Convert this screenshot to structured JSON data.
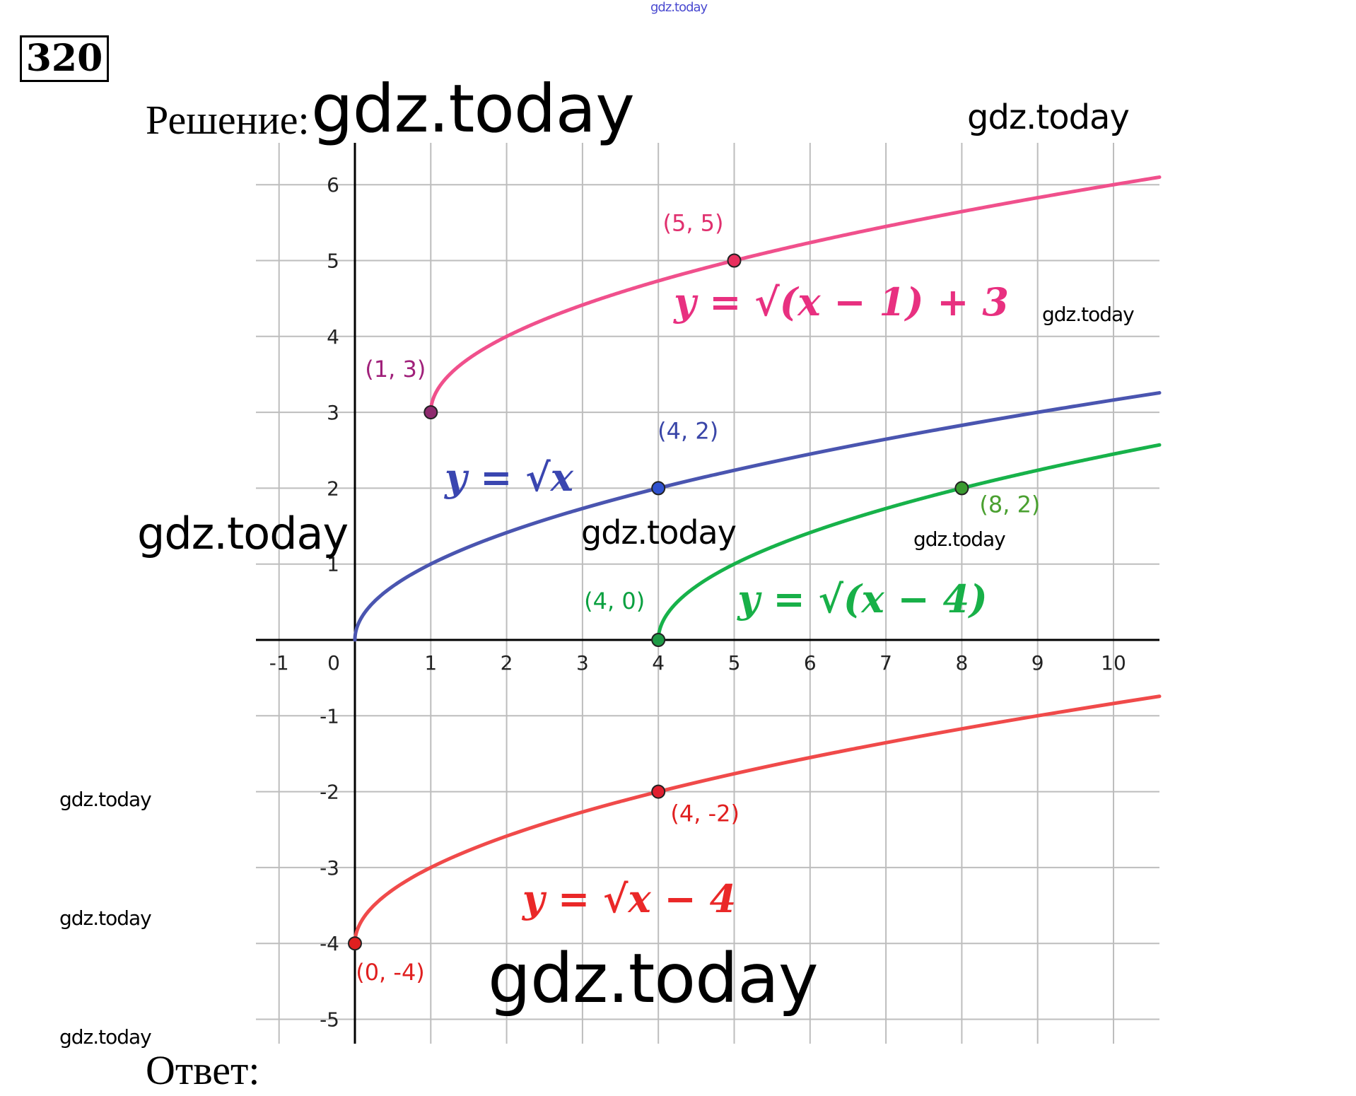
{
  "problem_number": "320",
  "solution_heading": "Решение:",
  "answer_heading": "Ответ:",
  "watermarks": [
    "gdz.today",
    "gdz.today",
    "gdz.today",
    "gdz.today",
    "gdz.today",
    "gdz.today",
    "gdz.today",
    "gdz.today",
    "gdz.today",
    "gdz.today",
    "gdz.today"
  ],
  "chart_data": {
    "type": "line",
    "title": "",
    "xlabel": "",
    "ylabel": "",
    "xlim": [
      -1,
      10.5
    ],
    "ylim": [
      -5.3,
      6.5
    ],
    "x_ticks": [
      "-1",
      "0",
      "1",
      "2",
      "3",
      "4",
      "5",
      "6",
      "7",
      "8",
      "9",
      "10"
    ],
    "y_ticks": [
      "-5",
      "-4",
      "-3",
      "-2",
      "-1",
      "1",
      "2",
      "3",
      "4",
      "5",
      "6"
    ],
    "grid": true,
    "series": [
      {
        "name": "y = √(x − 1) + 3",
        "color": "#f0508c",
        "function": "sqrt(x-1)+3",
        "x_start": 1,
        "points": [
          {
            "x": 1,
            "y": 3,
            "label": "(1, 3)",
            "label_color": "#a0207a",
            "dot": "#8e2a6e"
          },
          {
            "x": 5,
            "y": 5,
            "label": "(5, 5)",
            "label_color": "#e0306e",
            "dot": "#e8305e"
          }
        ]
      },
      {
        "name": "y = √x",
        "color": "#4a55b0",
        "function": "sqrt(x)",
        "x_start": 0,
        "points": [
          {
            "x": 4,
            "y": 2,
            "label": "(4, 2)",
            "label_color": "#3a46a8",
            "dot": "#2f52d0"
          }
        ]
      },
      {
        "name": "y = √(x − 4)",
        "color": "#17b24a",
        "function": "sqrt(x-4)",
        "x_start": 4,
        "points": [
          {
            "x": 4,
            "y": 0,
            "label": "(4, 0)",
            "label_color": "#0aa040",
            "dot": "#1e9a45"
          },
          {
            "x": 8,
            "y": 2,
            "label": "(8, 2)",
            "label_color": "#4aa030",
            "dot": "#3a9a30"
          }
        ]
      },
      {
        "name": "y = √x − 4",
        "color": "#f04a4a",
        "function": "sqrt(x)-4",
        "x_start": 0,
        "points": [
          {
            "x": 4,
            "y": -2,
            "label": "(4, -2)",
            "label_color": "#e02020",
            "dot": "#e02030"
          },
          {
            "x": 0,
            "y": -4,
            "label": "(0, -4)",
            "label_color": "#e02020",
            "dot": "#e02020"
          }
        ]
      }
    ],
    "annotations": [
      {
        "text": "y = √(x − 1) + 3",
        "color": "#e83080"
      },
      {
        "text": "y = √x",
        "color": "#3a46b0"
      },
      {
        "text": "y = √(x − 4)",
        "color": "#18b048"
      },
      {
        "text": "y = √x − 4",
        "color": "#ea2828"
      }
    ]
  }
}
